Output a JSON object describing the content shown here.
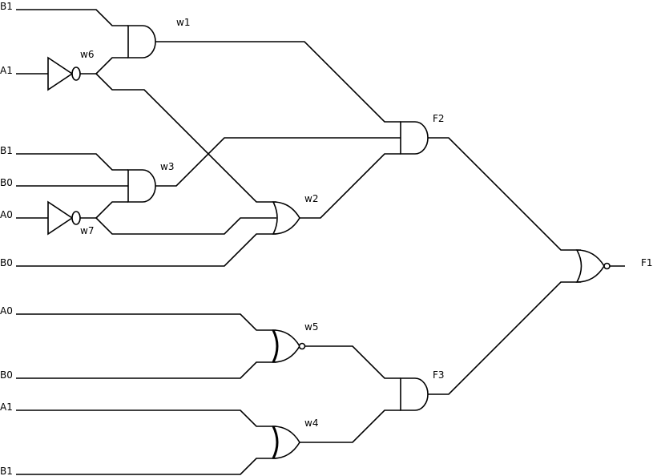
{
  "inputs": {
    "in1": "B1",
    "in2": "A1",
    "in3": "B1",
    "in4": "B0",
    "in5": "A0",
    "in6": "B0",
    "in7": "A0",
    "in8": "B0",
    "in9": "A1",
    "in10": "B1"
  },
  "wires": {
    "w1": "w1",
    "w2": "w2",
    "w3": "w3",
    "w4": "w4",
    "w5": "w5",
    "w6": "w6",
    "w7": "w7"
  },
  "outputs": {
    "f2": "F2",
    "f3": "F3",
    "f1": "F1"
  }
}
